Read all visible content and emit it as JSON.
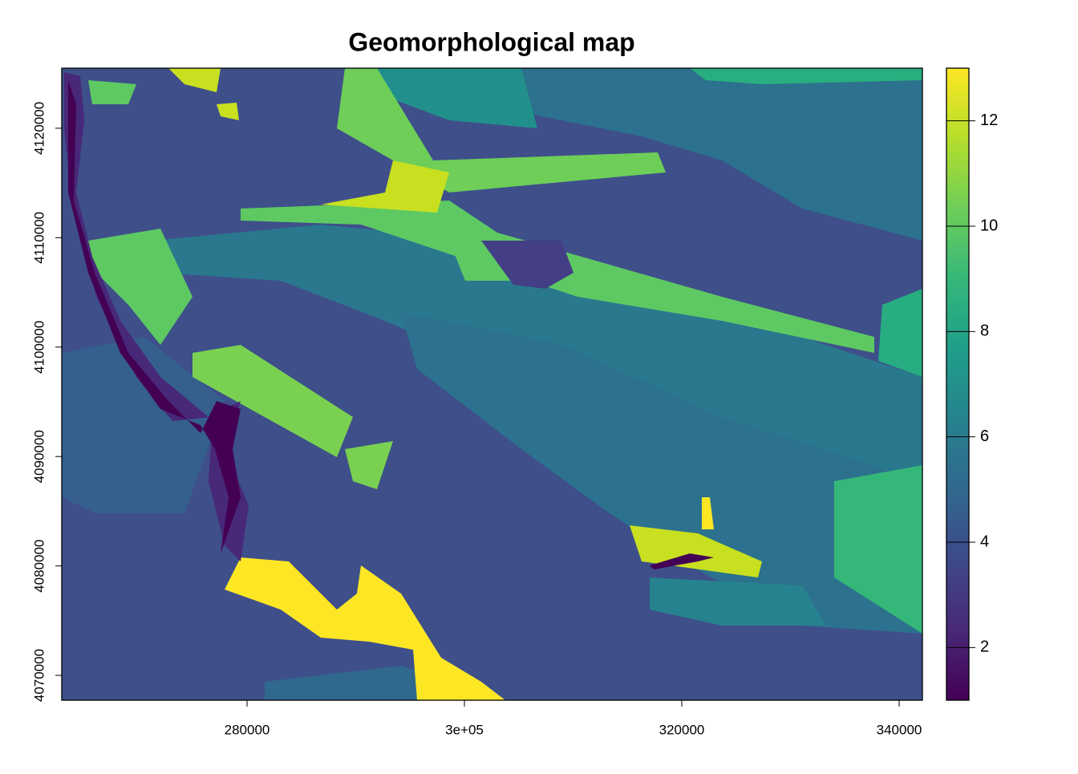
{
  "chart_data": {
    "type": "raster",
    "title": "Geomorphological map",
    "xlim": [
      262950,
      342140
    ],
    "ylim": [
      4067730,
      4125490
    ],
    "xticks": [
      280000,
      {
        "value": 300000,
        "label": "3e+05"
      },
      320000,
      340000
    ],
    "yticks": [
      4070000,
      4080000,
      4090000,
      4100000,
      4110000,
      4120000
    ],
    "zlim": [
      1,
      13
    ],
    "zticks": [
      2,
      4,
      6,
      8,
      10,
      12
    ],
    "colors": [
      "#440154",
      "#482878",
      "#3e4989",
      "#31688e",
      "#26828e",
      "#1f9e89",
      "#35b779",
      "#6ece58",
      "#b5de2b",
      "#fde725"
    ]
  }
}
